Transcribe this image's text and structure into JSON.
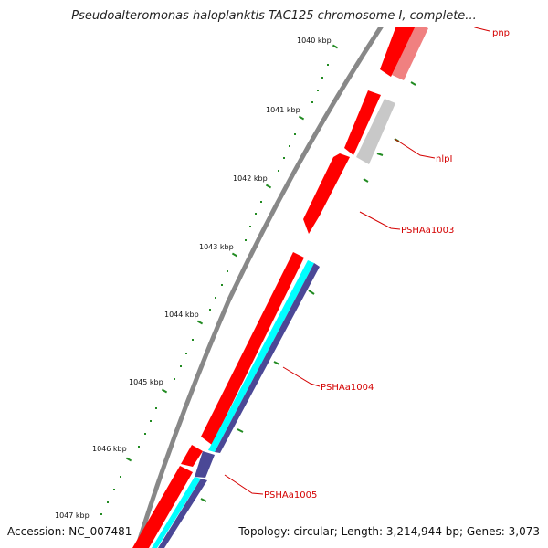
{
  "title": "Pseudoalteromonas haloplanktis TAC125 chromosome I, complete...",
  "footer": {
    "accession": "Accession: NC_007481",
    "summary": "Topology: circular; Length: 3,214,944 bp; Genes: 3,073"
  },
  "colors": {
    "backbone": "#888888",
    "gene_red": "#ff0000",
    "gene_pink": "#f08080",
    "gene_gray": "#c8c8c8",
    "cyan": "#00ffff",
    "navy": "#4b4896",
    "tick": "#228b22",
    "label": "#d40000"
  },
  "kbp_ticks": [
    {
      "label": "1040 kbp"
    },
    {
      "label": "1041 kbp"
    },
    {
      "label": "1042 kbp"
    },
    {
      "label": "1043 kbp"
    },
    {
      "label": "1044 kbp"
    },
    {
      "label": "1045 kbp"
    },
    {
      "label": "1046 kbp"
    },
    {
      "label": "1047 kbp"
    }
  ],
  "gene_labels": [
    {
      "label": "pnp"
    },
    {
      "label": "nlpI"
    },
    {
      "label": "PSHAa1003"
    },
    {
      "label": "PSHAa1004"
    },
    {
      "label": "PSHAa1005"
    }
  ]
}
